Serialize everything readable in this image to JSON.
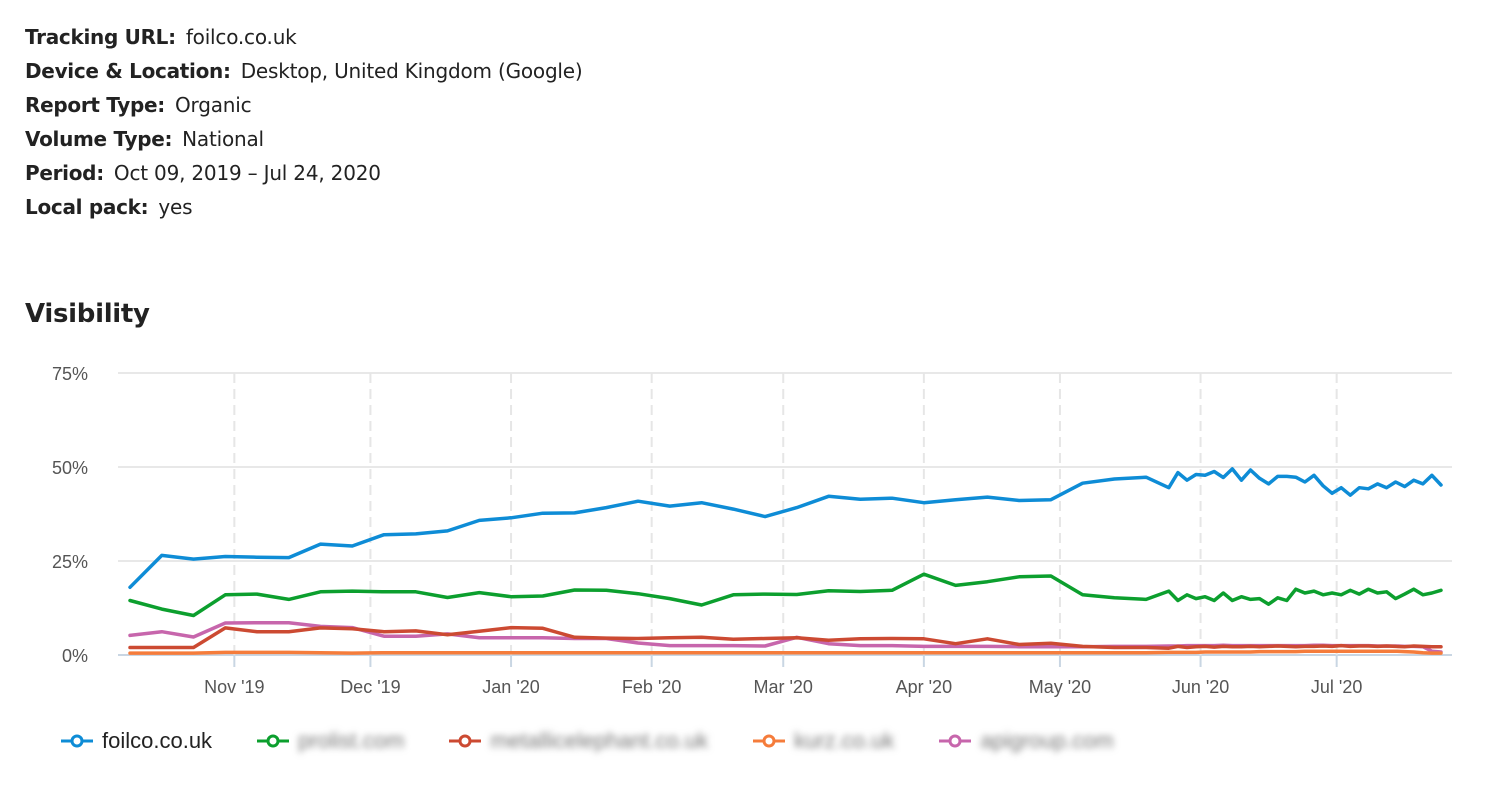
{
  "meta": [
    {
      "key": "Tracking URL:",
      "value": "foilco.co.uk"
    },
    {
      "key": "Device & Location:",
      "value": "Desktop, United Kingdom (Google)"
    },
    {
      "key": "Report Type:",
      "value": "Organic"
    },
    {
      "key": "Volume Type:",
      "value": "National"
    },
    {
      "key": "Period:",
      "value": "Oct 09, 2019 – Jul 24, 2020"
    },
    {
      "key": "Local pack:",
      "value": "yes"
    }
  ],
  "section_title": "Visibility",
  "chart_data": {
    "type": "line",
    "title": "Visibility",
    "xlabel": "",
    "ylabel": "",
    "ylim": [
      0,
      75
    ],
    "yticks": [
      0,
      25,
      50,
      75
    ],
    "ytick_labels": [
      "0%",
      "25%",
      "50%",
      "75%"
    ],
    "xlim": [
      "2019-10-09",
      "2020-07-24"
    ],
    "xticks": [
      "2019-11-01",
      "2019-12-01",
      "2020-01-01",
      "2020-02-01",
      "2020-03-01",
      "2020-04-01",
      "2020-05-01",
      "2020-06-01",
      "2020-07-01"
    ],
    "xtick_labels": [
      "Nov '19",
      "Dec '19",
      "Jan '20",
      "Feb '20",
      "Mar '20",
      "Apr '20",
      "May '20",
      "Jun '20",
      "Jul '20"
    ],
    "grid": true,
    "legend_position": "bottom-left",
    "x": [
      0,
      7,
      14,
      21,
      28,
      35,
      42,
      49,
      56,
      63,
      70,
      77,
      84,
      91,
      98,
      105,
      112,
      119,
      126,
      133,
      140,
      147,
      154,
      161,
      168,
      175,
      182,
      189,
      196,
      203,
      210,
      217,
      224,
      229,
      231,
      233,
      235,
      237,
      239,
      241,
      243,
      245,
      247,
      249,
      251,
      253,
      255,
      257,
      259,
      261,
      263,
      265,
      267,
      269,
      271,
      273,
      275,
      277,
      279,
      281,
      283,
      285,
      287,
      289
    ],
    "x_unit": "days since 2019-10-09",
    "series": [
      {
        "name": "foilco.co.uk",
        "color": "#0e8cd6",
        "blurred": false,
        "values": [
          18,
          26.5,
          25.5,
          26.2,
          26,
          25.9,
          29.5,
          29,
          32,
          32.2,
          33,
          35.8,
          36.5,
          37.7,
          37.8,
          39.2,
          40.9,
          39.6,
          40.5,
          38.8,
          36.8,
          39.2,
          42.2,
          41.4,
          41.7,
          40.5,
          41.3,
          42,
          41.1,
          41.3,
          45.7,
          46.8,
          47.3,
          44.5,
          48.5,
          46.5,
          48,
          47.8,
          48.8,
          47.2,
          49.5,
          46.5,
          49.2,
          47,
          45.5,
          47.5,
          47.5,
          47.3,
          46,
          47.8,
          45,
          43,
          44.5,
          42.5,
          44.5,
          44.2,
          45.5,
          44.5,
          46,
          44.8,
          46.5,
          45.5,
          47.8,
          45.2
        ]
      },
      {
        "name": "prolist.com",
        "color": "#0c9f2e",
        "blurred": true,
        "values": [
          14.5,
          12.2,
          10.5,
          16,
          16.2,
          14.8,
          16.8,
          17,
          16.8,
          16.8,
          15.3,
          16.6,
          15.5,
          15.7,
          17.3,
          17.2,
          16.3,
          15,
          13.3,
          16,
          16.2,
          16.1,
          17.1,
          16.9,
          17.2,
          21.5,
          18.5,
          19.5,
          20.8,
          21,
          16,
          15.2,
          14.8,
          17,
          14.5,
          16,
          15,
          15.5,
          14.5,
          16.5,
          14.5,
          15.5,
          14.8,
          15,
          13.5,
          15.2,
          14.5,
          17.5,
          16.5,
          17,
          16,
          16.5,
          16,
          17.2,
          16.2,
          17.5,
          16.5,
          16.8,
          15,
          16.2,
          17.5,
          16,
          16.5,
          17.2
        ]
      },
      {
        "name": "metallicelephant.co.uk",
        "color": "#cc4a32",
        "blurred": true,
        "values": [
          2,
          2,
          2,
          7.2,
          6.2,
          6.2,
          7.2,
          7,
          6.2,
          6.4,
          5.4,
          6.3,
          7.3,
          7.1,
          4.7,
          4.5,
          4.4,
          4.6,
          4.7,
          4.2,
          4.4,
          4.6,
          3.9,
          4.3,
          4.4,
          4.3,
          3,
          4.3,
          2.8,
          3.1,
          2.3,
          2,
          2,
          1.8,
          2.3,
          2,
          2.2,
          2.3,
          2.1,
          2.3,
          2.2,
          2.2,
          2.3,
          2.2,
          2.3,
          2.4,
          2.3,
          2.2,
          2.3,
          2.3,
          2.4,
          2.3,
          2.5,
          2.3,
          2.4,
          2.4,
          2.3,
          2.4,
          2.3,
          2.2,
          2.4,
          2.3,
          2.2,
          2.2
        ]
      },
      {
        "name": "kurz.co.uk",
        "color": "#f57c3b",
        "blurred": true,
        "values": [
          0.5,
          0.5,
          0.5,
          0.7,
          0.7,
          0.7,
          0.6,
          0.5,
          0.6,
          0.6,
          0.6,
          0.6,
          0.6,
          0.6,
          0.6,
          0.6,
          0.6,
          0.6,
          0.6,
          0.6,
          0.6,
          0.6,
          0.6,
          0.6,
          0.6,
          0.6,
          0.6,
          0.6,
          0.6,
          0.6,
          0.6,
          0.6,
          0.6,
          0.7,
          0.7,
          0.7,
          0.7,
          0.8,
          0.8,
          0.8,
          0.8,
          0.8,
          0.8,
          0.9,
          0.9,
          0.9,
          0.9,
          0.9,
          1,
          1,
          1,
          1,
          1,
          1,
          1,
          1,
          1,
          1,
          1,
          0.9,
          0.8,
          0.6,
          0.5,
          0.5
        ]
      },
      {
        "name": "apigroup.com",
        "color": "#c766ac",
        "blurred": true,
        "values": [
          5.2,
          6.2,
          4.8,
          8.5,
          8.6,
          8.6,
          7.6,
          7.3,
          5,
          5,
          5.6,
          4.6,
          4.6,
          4.6,
          4.4,
          4.4,
          3.2,
          2.5,
          2.5,
          2.5,
          2.4,
          4.7,
          3,
          2.5,
          2.5,
          2.3,
          2.3,
          2.3,
          2.2,
          2.2,
          2.2,
          2.3,
          2.3,
          2.4,
          2.4,
          2.5,
          2.5,
          2.5,
          2.5,
          2.6,
          2.5,
          2.5,
          2.5,
          2.5,
          2.5,
          2.5,
          2.5,
          2.5,
          2.5,
          2.6,
          2.6,
          2.5,
          2.5,
          2.5,
          2.5,
          2.5,
          2.4,
          2.4,
          2.4,
          2.3,
          2.3,
          2.2,
          1,
          0.8
        ]
      }
    ]
  },
  "legend": [
    {
      "label": "foilco.co.uk",
      "color": "#0e8cd6",
      "blurred": false
    },
    {
      "label": "prolist.com",
      "color": "#0c9f2e",
      "blurred": true
    },
    {
      "label": "metallicelephant.co.uk",
      "color": "#cc4a32",
      "blurred": true
    },
    {
      "label": "kurz.co.uk",
      "color": "#f57c3b",
      "blurred": true
    },
    {
      "label": "apigroup.com",
      "color": "#c766ac",
      "blurred": true
    }
  ]
}
